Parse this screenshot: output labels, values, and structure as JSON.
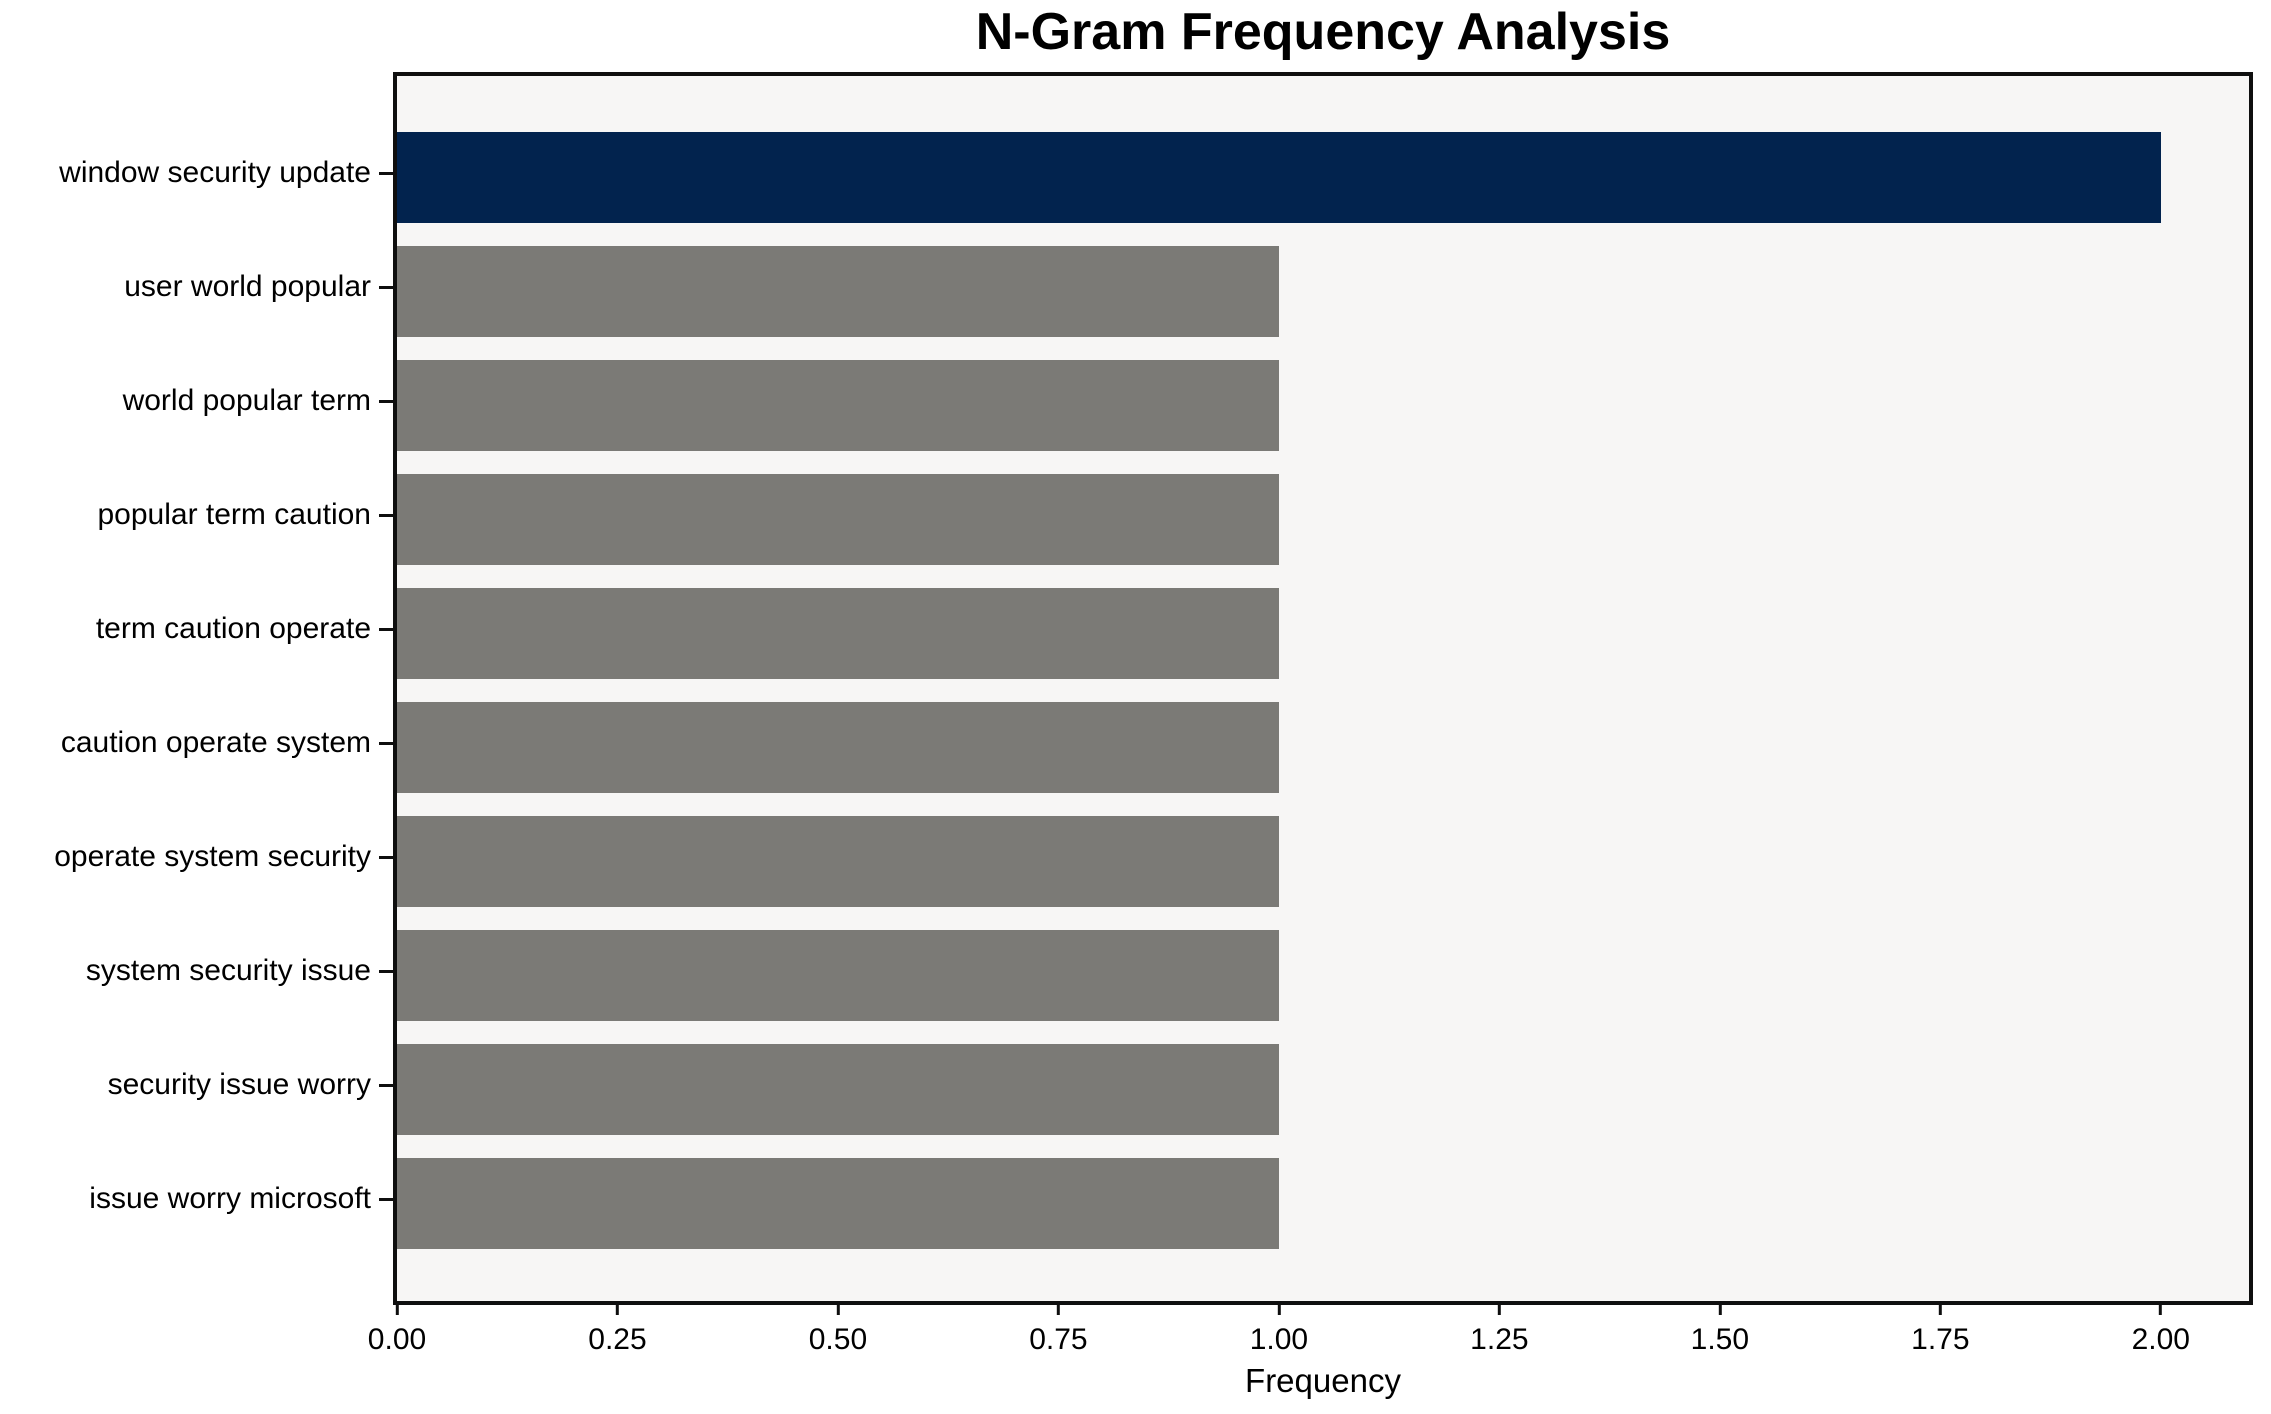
{
  "chart_data": {
    "type": "bar",
    "orientation": "horizontal",
    "title": "N-Gram Frequency Analysis",
    "xlabel": "Frequency",
    "ylabel": "",
    "categories": [
      "window security update",
      "user world popular",
      "world popular term",
      "popular term caution",
      "term caution operate",
      "caution operate system",
      "operate system security",
      "system security issue",
      "security issue worry",
      "issue worry microsoft"
    ],
    "values": [
      2.0,
      1.0,
      1.0,
      1.0,
      1.0,
      1.0,
      1.0,
      1.0,
      1.0,
      1.0
    ],
    "bar_colors": [
      "#02234e",
      "#7b7a76",
      "#7b7a76",
      "#7b7a76",
      "#7b7a76",
      "#7b7a76",
      "#7b7a76",
      "#7b7a76",
      "#7b7a76",
      "#7b7a76"
    ],
    "highlight_color": "#02234e",
    "default_color": "#7b7a76",
    "xlim": [
      0,
      2.1
    ],
    "x_tick_labels": [
      "0.00",
      "0.25",
      "0.50",
      "0.75",
      "1.00",
      "1.25",
      "1.50",
      "1.75",
      "2.00"
    ],
    "x_tick_values": [
      0.0,
      0.25,
      0.5,
      0.75,
      1.0,
      1.25,
      1.5,
      1.75,
      2.0
    ],
    "grid": false,
    "legend": null,
    "plot_background": "#f7f6f5",
    "figure_background": "#ffffff"
  }
}
